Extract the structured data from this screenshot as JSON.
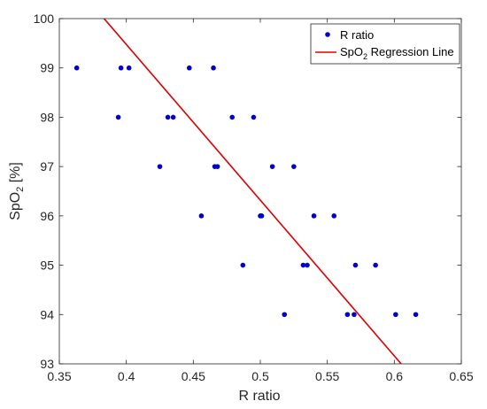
{
  "chart_data": {
    "type": "scatter",
    "xlabel": "R ratio",
    "ylabel_main": "SpO",
    "ylabel_sub": "2",
    "ylabel_tail": " [%]",
    "xlim": [
      0.35,
      0.65
    ],
    "ylim": [
      93,
      100
    ],
    "xticks": [
      "0.35",
      "0.4",
      "0.45",
      "0.5",
      "0.55",
      "0.6",
      "0.65"
    ],
    "yticks": [
      "93",
      "94",
      "95",
      "96",
      "97",
      "98",
      "99",
      "100"
    ],
    "grid": false,
    "legend_position": "top-right",
    "series": [
      {
        "name": "R ratio",
        "kind": "scatter",
        "color": "#0000cc",
        "points": [
          [
            0.363,
            99
          ],
          [
            0.396,
            99
          ],
          [
            0.402,
            99
          ],
          [
            0.447,
            99
          ],
          [
            0.465,
            99
          ],
          [
            0.394,
            98
          ],
          [
            0.431,
            98
          ],
          [
            0.435,
            98
          ],
          [
            0.479,
            98
          ],
          [
            0.495,
            98
          ],
          [
            0.425,
            97
          ],
          [
            0.466,
            97
          ],
          [
            0.468,
            97
          ],
          [
            0.509,
            97
          ],
          [
            0.525,
            97
          ],
          [
            0.456,
            96
          ],
          [
            0.5,
            96
          ],
          [
            0.501,
            96
          ],
          [
            0.54,
            96
          ],
          [
            0.555,
            96
          ],
          [
            0.487,
            95
          ],
          [
            0.532,
            95
          ],
          [
            0.535,
            95
          ],
          [
            0.571,
            95
          ],
          [
            0.586,
            95
          ],
          [
            0.518,
            94
          ],
          [
            0.565,
            94
          ],
          [
            0.57,
            94
          ],
          [
            0.601,
            94
          ],
          [
            0.616,
            94
          ]
        ]
      },
      {
        "name_main": "SpO",
        "name_sub": "2",
        "name_tail": " Regression Line",
        "kind": "line",
        "color": "#dd0000",
        "points": [
          [
            0.3834,
            100
          ],
          [
            0.6051,
            93
          ]
        ]
      }
    ]
  }
}
